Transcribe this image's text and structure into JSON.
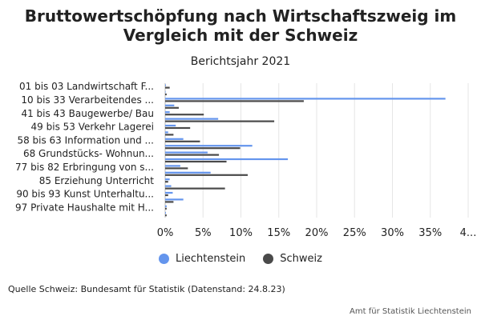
{
  "chart_data": {
    "type": "bar",
    "orientation": "horizontal",
    "title": "Bruttowertschöpfung nach Wirtschaftszweig im Vergleich mit der Schweiz",
    "subtitle": "Berichtsjahr 2021",
    "category_labels_shown": [
      "01 bis 03 Landwirtschaft F...",
      "10 bis 33 Verarbeitendes ...",
      "41 bis 43 Baugewerbe/ Bau",
      "49 bis 53 Verkehr Lagerei",
      "58 bis 63 Information und ...",
      "68 Grundstücks- Wohnun...",
      "77 bis 82 Erbringung von s...",
      "85 Erziehung Unterricht",
      "90 bis 93 Kunst Unterhaltu...",
      "97 Private Haushalte mit H..."
    ],
    "label_every": 2,
    "row_count": 20,
    "series": [
      {
        "name": "Liechtenstein",
        "color": "#6495ED",
        "values": [
          0.1,
          0.0,
          37.0,
          1.2,
          0.6,
          7.0,
          1.4,
          0.4,
          2.4,
          11.5,
          5.6,
          16.2,
          2.0,
          6.0,
          0.6,
          0.8,
          1.0,
          2.4,
          0.2,
          0.1
        ]
      },
      {
        "name": "Schweiz",
        "color": "#4a4a4a",
        "values": [
          0.6,
          0.2,
          18.3,
          1.8,
          5.1,
          14.4,
          3.3,
          1.1,
          4.6,
          9.9,
          7.1,
          8.1,
          3.0,
          10.9,
          0.4,
          7.9,
          0.4,
          1.1,
          0.2,
          0.2
        ]
      }
    ],
    "xlim": [
      0,
      40
    ],
    "xticks": [
      "0%",
      "5%",
      "10%",
      "15%",
      "20%",
      "25%",
      "30%",
      "35%",
      "4..."
    ],
    "grid": true,
    "legend_position": "bottom"
  },
  "footer": {
    "source": "Quelle Schweiz: Bundesamt für Statistik (Datenstand: 24.8.23)",
    "credit": "Amt für Statistik Liechtenstein"
  }
}
